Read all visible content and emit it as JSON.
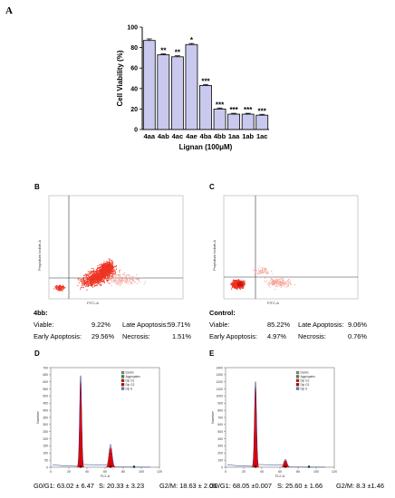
{
  "panels": {
    "a": "A",
    "b": "B",
    "c": "C",
    "d": "D",
    "e": "E"
  },
  "chart_data": [
    {
      "type": "bar",
      "panel": "A",
      "categories": [
        "4aa",
        "4ab",
        "4ac",
        "4ae",
        "4ba",
        "4bb",
        "1aa",
        "1ab",
        "1ac"
      ],
      "values": [
        87,
        73,
        71,
        83,
        43,
        20,
        15,
        15,
        14
      ],
      "errors": [
        1.5,
        1,
        1,
        1,
        1,
        1,
        0.8,
        0.8,
        0.8
      ],
      "significance": [
        "",
        "**",
        "**",
        "*",
        "***",
        "***",
        "***",
        "***",
        "***"
      ],
      "xlabel": "Lignan (100μM)",
      "ylabel": "Cell Viability (%)",
      "ylim": [
        0,
        100
      ],
      "yticks": [
        "0",
        "20",
        "40",
        "60",
        "80",
        "100"
      ],
      "bar_color": "#c9c9ef"
    },
    {
      "type": "scatter",
      "panel": "B",
      "xlabel": "FITC-A",
      "ylabel": "Propidium Iodide-A"
    },
    {
      "type": "scatter",
      "panel": "C",
      "xlabel": "FITC-A",
      "ylabel": "Propidium Iodide-A"
    },
    {
      "type": "area",
      "panel": "D",
      "xlabel": "FL2-A",
      "ylabel": "Number",
      "xticks": [
        "0",
        "20",
        "40",
        "60",
        "80",
        "100",
        "120"
      ],
      "yticks": [
        "0",
        "50",
        "100",
        "150",
        "200",
        "250",
        "300",
        "350",
        "400",
        "450",
        "500",
        "550",
        "600",
        "650",
        "700"
      ]
    },
    {
      "type": "area",
      "panel": "E",
      "xlabel": "FL2-A",
      "ylabel": "Number",
      "xticks": [
        "0",
        "20",
        "40",
        "60",
        "80",
        "100",
        "120"
      ],
      "yticks": [
        "0",
        "100",
        "200",
        "300",
        "400",
        "500",
        "600",
        "700",
        "800",
        "900",
        "1000",
        "1100",
        "1200",
        "1300",
        "1400"
      ]
    }
  ],
  "legend_items": [
    "Debris",
    "Aggregates",
    "Dip G1",
    "Dip G2",
    "Dip S"
  ],
  "stats_4bb": {
    "title": "4bb:",
    "viable_label": "Viable:",
    "viable_value": "9.22%",
    "late_label": "Late Apoptosis:",
    "late_value": "59.71%",
    "early_label": "Early Apoptosis:",
    "early_value": "29.56%",
    "necrosis_label": "Necrosis:",
    "necrosis_value": "1.51%"
  },
  "stats_control": {
    "title": "Control:",
    "viable_label": "Viable:",
    "viable_value": "85.22%",
    "late_label": "Late Apoptosis:",
    "late_value": "9.06%",
    "early_label": "Early Apoptosis:",
    "early_value": "4.97%",
    "necrosis_label": "Necrosis:",
    "necrosis_value": "0.76%"
  },
  "cycle_d": {
    "g0g1": "G0/G1: 63.02 ± 6.47",
    "s": "S: 20.33 ± 3.23",
    "g2m": "G2/M: 18.63 ± 2.06"
  },
  "cycle_e": {
    "g0g1": "G0/G1: 68.05 ±0.007",
    "s": "S: 25.60 ± 1.66",
    "g2m": "G2/M: 8.3 ±1.46"
  },
  "colors": {
    "bar": "#c9c9ef",
    "scatter": "#ee3322",
    "histogram": "#e00000",
    "fit_line": "#1f3a8f"
  }
}
